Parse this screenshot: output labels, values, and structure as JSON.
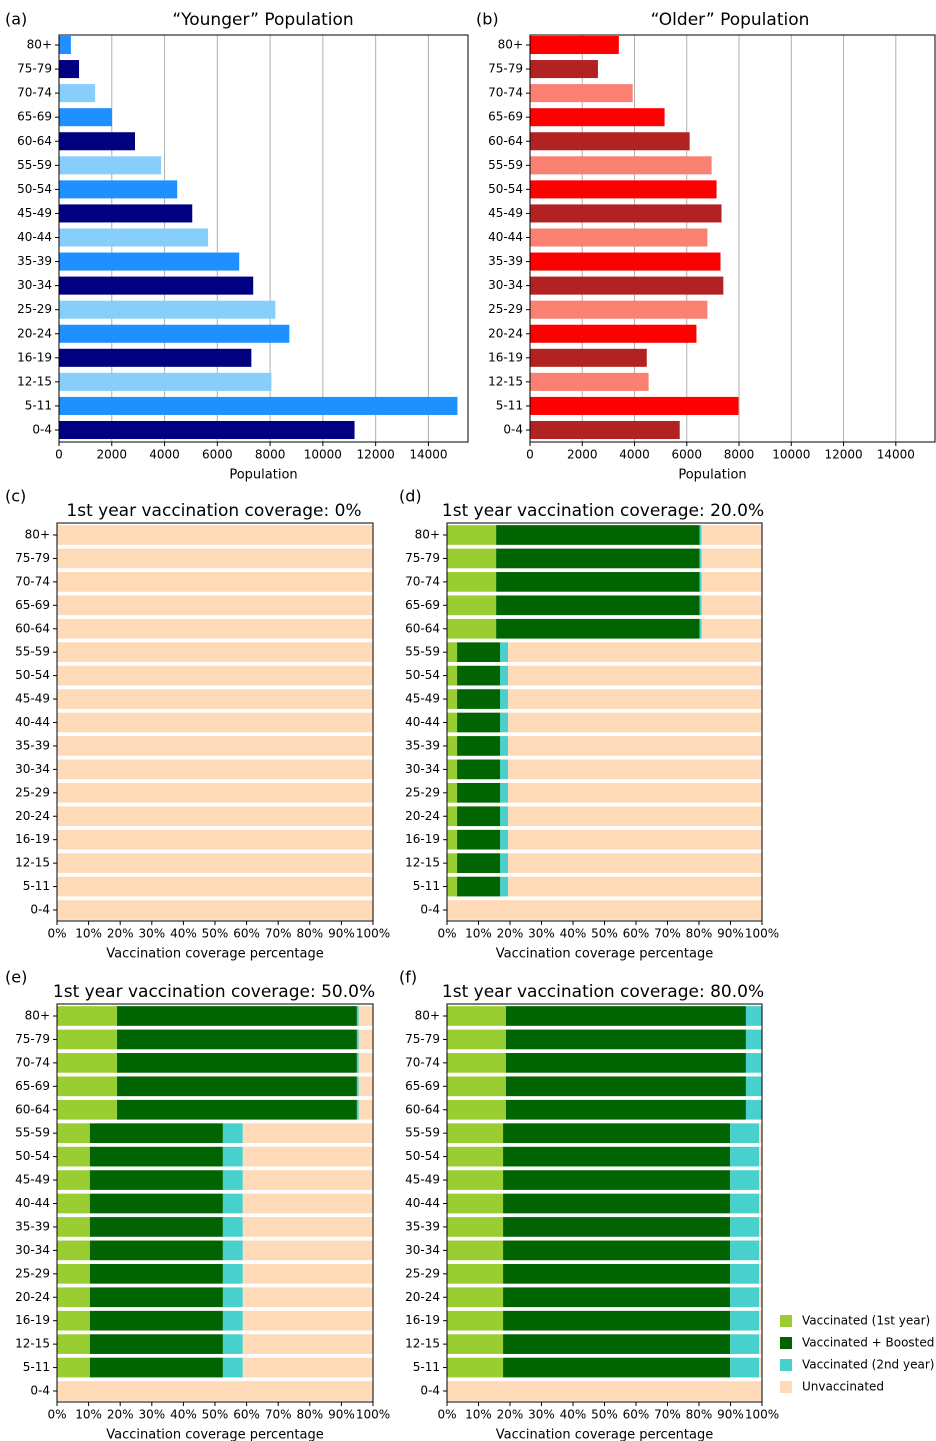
{
  "chart_data": [
    {
      "type": "barh",
      "panel": "(a)",
      "title": "“Younger” Population",
      "xlabel": "Population",
      "categories": [
        "0-4",
        "5-11",
        "12-15",
        "16-19",
        "20-24",
        "25-29",
        "30-34",
        "35-39",
        "40-44",
        "45-49",
        "50-54",
        "55-59",
        "60-64",
        "65-69",
        "70-74",
        "75-79",
        "80+"
      ],
      "values": [
        11200,
        15100,
        8050,
        7290,
        8730,
        8200,
        7360,
        6830,
        5650,
        5050,
        4480,
        3870,
        2880,
        2010,
        1370,
        760,
        450
      ],
      "colors": [
        "#000080",
        "#1e90ff",
        "#87cefa",
        "#000080",
        "#1e90ff",
        "#87cefa",
        "#000080",
        "#1e90ff",
        "#87cefa",
        "#000080",
        "#1e90ff",
        "#87cefa",
        "#000080",
        "#1e90ff",
        "#87cefa",
        "#000080",
        "#1e90ff"
      ],
      "xlim": [
        0,
        15500
      ],
      "xticks": [
        0,
        2000,
        4000,
        6000,
        8000,
        10000,
        12000,
        14000
      ],
      "grid": true
    },
    {
      "type": "barh",
      "panel": "(b)",
      "title": "“Older” Population",
      "xlabel": "Population",
      "categories": [
        "0-4",
        "5-11",
        "12-15",
        "16-19",
        "20-24",
        "25-29",
        "30-34",
        "35-39",
        "40-44",
        "45-49",
        "50-54",
        "55-59",
        "60-64",
        "65-69",
        "70-74",
        "75-79",
        "80+"
      ],
      "values": [
        5730,
        7980,
        4540,
        4470,
        6370,
        6790,
        7400,
        7290,
        6790,
        7330,
        7140,
        6950,
        6110,
        5150,
        3930,
        2600,
        3400
      ],
      "colors": [
        "#b22222",
        "#ff0000",
        "#fa8072",
        "#b22222",
        "#ff0000",
        "#fa8072",
        "#b22222",
        "#ff0000",
        "#fa8072",
        "#b22222",
        "#ff0000",
        "#fa8072",
        "#b22222",
        "#ff0000",
        "#fa8072",
        "#b22222",
        "#ff0000"
      ],
      "xlim": [
        0,
        15500
      ],
      "xticks": [
        0,
        2000,
        4000,
        6000,
        8000,
        10000,
        12000,
        14000
      ],
      "grid": true
    },
    {
      "type": "stacked_barh",
      "panel": "(c)",
      "title": "1st year vaccination coverage: 0%",
      "xlabel": "Vaccination coverage percentage",
      "categories": [
        "0-4",
        "5-11",
        "12-15",
        "16-19",
        "20-24",
        "25-29",
        "30-34",
        "35-39",
        "40-44",
        "45-49",
        "50-54",
        "55-59",
        "60-64",
        "65-69",
        "70-74",
        "75-79",
        "80+"
      ],
      "series": [
        {
          "color": "#9acd32",
          "values": [
            0,
            0,
            0,
            0,
            0,
            0,
            0,
            0,
            0,
            0,
            0,
            0,
            0,
            0,
            0,
            0,
            0
          ]
        },
        {
          "color": "#006400",
          "values": [
            0,
            0,
            0,
            0,
            0,
            0,
            0,
            0,
            0,
            0,
            0,
            0,
            0,
            0,
            0,
            0,
            0
          ]
        },
        {
          "color": "#48d1cc",
          "values": [
            0,
            0,
            0,
            0,
            0,
            0,
            0,
            0,
            0,
            0,
            0,
            0,
            0,
            0,
            0,
            0,
            0
          ]
        },
        {
          "color": "#ffdab9",
          "values": [
            100,
            100,
            100,
            100,
            100,
            100,
            100,
            100,
            100,
            100,
            100,
            100,
            100,
            100,
            100,
            100,
            100
          ]
        }
      ],
      "xlim": [
        0,
        100
      ],
      "xticks": [
        {
          "value": 0,
          "label": "0%"
        },
        {
          "value": 10,
          "label": "10%"
        },
        {
          "value": 20,
          "label": "20%"
        },
        {
          "value": 30,
          "label": "30%"
        },
        {
          "value": 40,
          "label": "40%"
        },
        {
          "value": 50,
          "label": "50%"
        },
        {
          "value": 60,
          "label": "60%"
        },
        {
          "value": 70,
          "label": "70%"
        },
        {
          "value": 80,
          "label": "80%"
        },
        {
          "value": 90,
          "label": "90%"
        },
        {
          "value": 100,
          "label": "100%"
        }
      ]
    },
    {
      "type": "stacked_barh",
      "panel": "(d)",
      "title": "1st year vaccination coverage: 20.0%",
      "xlabel": "Vaccination coverage percentage",
      "categories": [
        "0-4",
        "5-11",
        "12-15",
        "16-19",
        "20-24",
        "25-29",
        "30-34",
        "35-39",
        "40-44",
        "45-49",
        "50-54",
        "55-59",
        "60-64",
        "65-69",
        "70-74",
        "75-79",
        "80+"
      ],
      "series": [
        {
          "color": "#9acd32",
          "values": [
            0,
            3.2,
            3.2,
            3.2,
            3.2,
            3.2,
            3.2,
            3.2,
            3.2,
            3.2,
            3.2,
            3.2,
            15.6,
            15.6,
            15.6,
            15.6,
            15.6
          ]
        },
        {
          "color": "#006400",
          "values": [
            0,
            13.7,
            13.7,
            13.7,
            13.7,
            13.7,
            13.7,
            13.7,
            13.7,
            13.7,
            13.7,
            13.7,
            64.6,
            64.6,
            64.6,
            64.6,
            64.6
          ]
        },
        {
          "color": "#48d1cc",
          "values": [
            0,
            2.5,
            2.5,
            2.5,
            2.5,
            2.5,
            2.5,
            2.5,
            2.5,
            2.5,
            2.5,
            2.5,
            0.6,
            0.6,
            0.6,
            0.6,
            0.6
          ]
        },
        {
          "color": "#ffdab9",
          "values": [
            100,
            80.6,
            80.6,
            80.6,
            80.6,
            80.6,
            80.6,
            80.6,
            80.6,
            80.6,
            80.6,
            80.6,
            19.2,
            19.2,
            19.2,
            19.2,
            19.2
          ]
        }
      ],
      "xlim": [
        0,
        100
      ],
      "xticks": [
        {
          "value": 0,
          "label": "0%"
        },
        {
          "value": 10,
          "label": "10%"
        },
        {
          "value": 20,
          "label": "20%"
        },
        {
          "value": 30,
          "label": "30%"
        },
        {
          "value": 40,
          "label": "40%"
        },
        {
          "value": 50,
          "label": "50%"
        },
        {
          "value": 60,
          "label": "60%"
        },
        {
          "value": 70,
          "label": "70%"
        },
        {
          "value": 80,
          "label": "80%"
        },
        {
          "value": 90,
          "label": "90%"
        },
        {
          "value": 100,
          "label": "100%"
        }
      ]
    },
    {
      "type": "stacked_barh",
      "panel": "(e)",
      "title": "1st year vaccination coverage: 50.0%",
      "xlabel": "Vaccination coverage percentage",
      "categories": [
        "0-4",
        "5-11",
        "12-15",
        "16-19",
        "20-24",
        "25-29",
        "30-34",
        "35-39",
        "40-44",
        "45-49",
        "50-54",
        "55-59",
        "60-64",
        "65-69",
        "70-74",
        "75-79",
        "80+"
      ],
      "series": [
        {
          "color": "#9acd32",
          "values": [
            0,
            10.4,
            10.4,
            10.4,
            10.4,
            10.4,
            10.4,
            10.4,
            10.4,
            10.4,
            10.4,
            10.4,
            19.0,
            19.0,
            19.0,
            19.0,
            19.0
          ]
        },
        {
          "color": "#006400",
          "values": [
            0,
            42.1,
            42.1,
            42.1,
            42.1,
            42.1,
            42.1,
            42.1,
            42.1,
            42.1,
            42.1,
            42.1,
            75.9,
            75.9,
            75.9,
            75.9,
            75.9
          ]
        },
        {
          "color": "#48d1cc",
          "values": [
            0,
            6.3,
            6.3,
            6.3,
            6.3,
            6.3,
            6.3,
            6.3,
            6.3,
            6.3,
            6.3,
            6.3,
            0.6,
            0.6,
            0.6,
            0.6,
            0.6
          ]
        },
        {
          "color": "#ffdab9",
          "values": [
            100,
            41.2,
            41.2,
            41.2,
            41.2,
            41.2,
            41.2,
            41.2,
            41.2,
            41.2,
            41.2,
            41.2,
            4.5,
            4.5,
            4.5,
            4.5,
            4.5
          ]
        }
      ],
      "xlim": [
        0,
        100
      ],
      "xticks": [
        {
          "value": 0,
          "label": "0%"
        },
        {
          "value": 10,
          "label": "10%"
        },
        {
          "value": 20,
          "label": "20%"
        },
        {
          "value": 30,
          "label": "30%"
        },
        {
          "value": 40,
          "label": "40%"
        },
        {
          "value": 50,
          "label": "50%"
        },
        {
          "value": 60,
          "label": "60%"
        },
        {
          "value": 70,
          "label": "70%"
        },
        {
          "value": 80,
          "label": "80%"
        },
        {
          "value": 90,
          "label": "90%"
        },
        {
          "value": 100,
          "label": "100%"
        }
      ]
    },
    {
      "type": "stacked_barh",
      "panel": "(f)",
      "title": "1st year vaccination coverage: 80.0%",
      "xlabel": "Vaccination coverage percentage",
      "categories": [
        "0-4",
        "5-11",
        "12-15",
        "16-19",
        "20-24",
        "25-29",
        "30-34",
        "35-39",
        "40-44",
        "45-49",
        "50-54",
        "55-59",
        "60-64",
        "65-69",
        "70-74",
        "75-79",
        "80+"
      ],
      "series": [
        {
          "name": "Vaccinated (1st year)",
          "color": "#9acd32",
          "values": [
            0,
            17.8,
            17.8,
            17.8,
            17.8,
            17.8,
            17.8,
            17.8,
            17.8,
            17.8,
            17.8,
            17.8,
            18.7,
            18.7,
            18.7,
            18.7,
            18.7
          ]
        },
        {
          "name": "Vaccinated + Boosted",
          "color": "#006400",
          "values": [
            0,
            72.1,
            72.1,
            72.1,
            72.1,
            72.1,
            72.1,
            72.1,
            72.1,
            72.1,
            72.1,
            72.1,
            76.2,
            76.2,
            76.2,
            76.2,
            76.2
          ]
        },
        {
          "name": "Vaccinated (2nd year)",
          "color": "#48d1cc",
          "values": [
            0,
            9.2,
            9.2,
            9.2,
            9.2,
            9.2,
            9.2,
            9.2,
            9.2,
            9.2,
            9.2,
            9.2,
            5.1,
            5.1,
            5.1,
            5.1,
            5.1
          ]
        },
        {
          "name": "Unvaccinated",
          "color": "#ffdab9",
          "values": [
            100,
            0.9,
            0.9,
            0.9,
            0.9,
            0.9,
            0.9,
            0.9,
            0.9,
            0.9,
            0.9,
            0.9,
            0,
            0,
            0,
            0,
            0
          ]
        }
      ],
      "xlim": [
        0,
        100
      ],
      "xticks": [
        {
          "value": 0,
          "label": "0%"
        },
        {
          "value": 10,
          "label": "10%"
        },
        {
          "value": 20,
          "label": "20%"
        },
        {
          "value": 30,
          "label": "30%"
        },
        {
          "value": 40,
          "label": "40%"
        },
        {
          "value": 50,
          "label": "50%"
        },
        {
          "value": 60,
          "label": "60%"
        },
        {
          "value": 70,
          "label": "70%"
        },
        {
          "value": 80,
          "label": "80%"
        },
        {
          "value": 90,
          "label": "90%"
        },
        {
          "value": 100,
          "label": "100%"
        }
      ],
      "legend": "right"
    }
  ]
}
